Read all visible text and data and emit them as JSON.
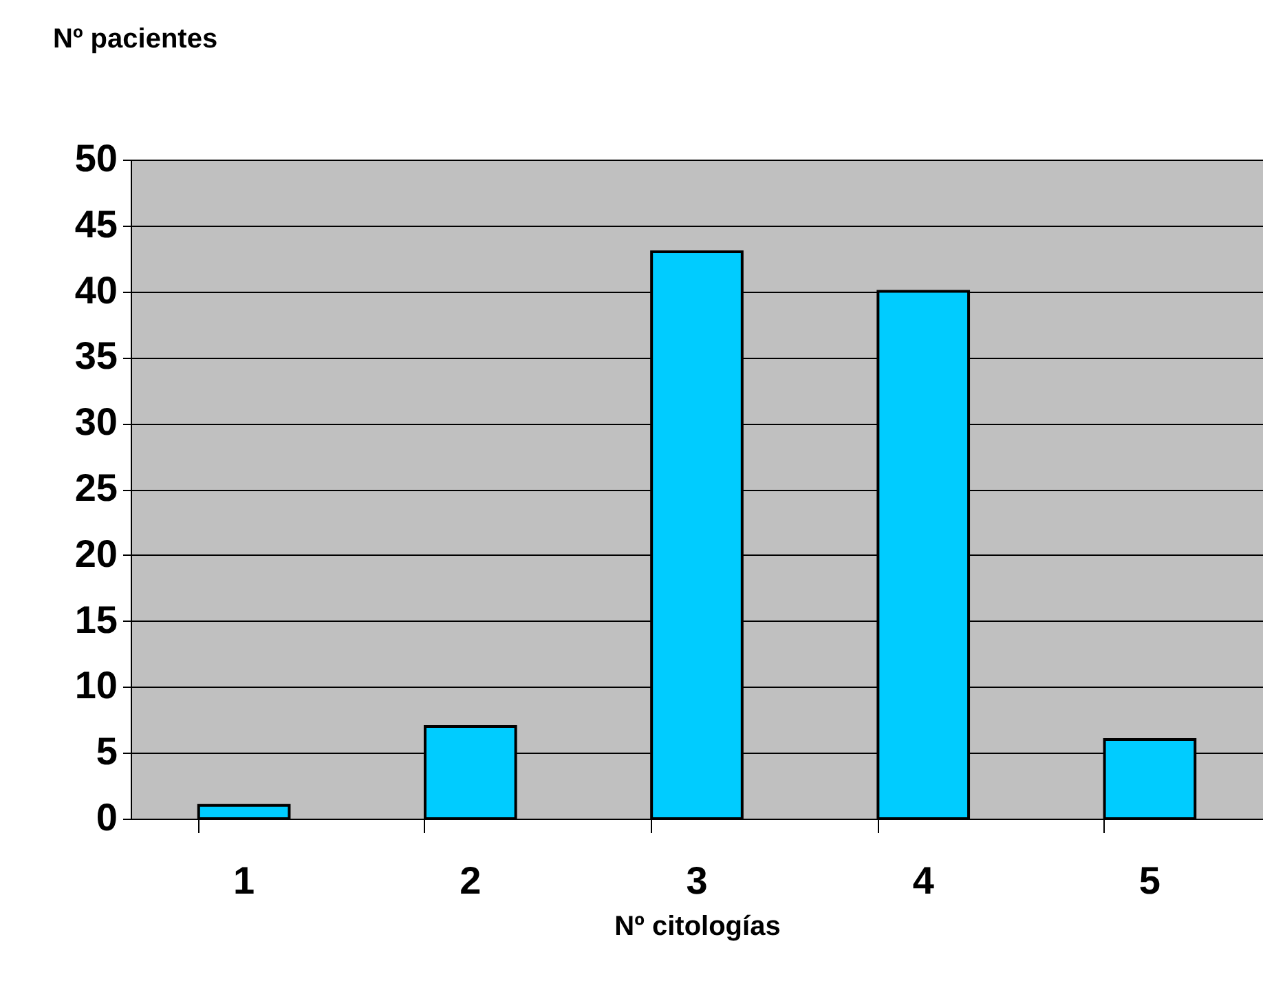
{
  "chart_data": {
    "type": "bar",
    "xlabel": "Nº citologías",
    "ylabel": "Nº pacientes",
    "categories": [
      "1",
      "2",
      "3",
      "4",
      "5"
    ],
    "values": [
      1,
      7,
      43,
      40,
      6
    ],
    "color": "#00ccff",
    "ylim": [
      0,
      50
    ],
    "yticks": [
      0,
      5,
      10,
      15,
      20,
      25,
      30,
      35,
      40,
      45,
      50
    ],
    "grid": "y"
  }
}
